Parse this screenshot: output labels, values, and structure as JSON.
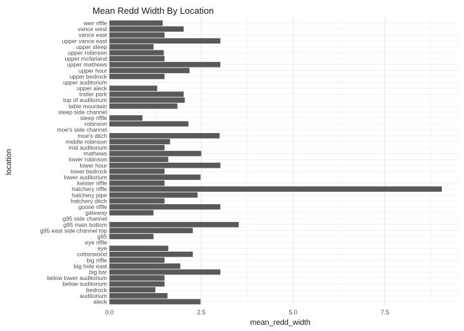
{
  "chart_data": {
    "type": "bar",
    "orientation": "horizontal",
    "title": "Mean Redd Width By Location",
    "xlabel": "mean_redd_width",
    "ylabel": "location",
    "xlim": [
      0,
      9.5
    ],
    "xticks": [
      0.0,
      2.5,
      5.0,
      7.5
    ],
    "xtick_labels": [
      "0.0",
      "2.5",
      "5.0",
      "7.5"
    ],
    "grid": true,
    "bar_color": "#595959",
    "categories": [
      "weir riffle",
      "vance west",
      "vance east",
      "upper vance east",
      "upper steep",
      "upper robinson",
      "upper mcfarland",
      "upper mathews",
      "upper hour",
      "upper bedrock",
      "upper auditorium",
      "upper aleck",
      "trailer park",
      "top of auditorium",
      "table mountain",
      "steep side channel",
      "steep riffle",
      "robinson",
      "moe's side channel",
      "moe's ditch",
      "middle robinson",
      "mid auditorium",
      "mathews",
      "lower robinson",
      "lower hour",
      "lower bedrock",
      "lower auditorium",
      "keister riffle",
      "hatchery riffle",
      "hatchery pipe",
      "hatchery ditch",
      "goose riffle",
      "gateway",
      "g95 side channel",
      "g95 main bottom",
      "g95 east side channel top",
      "g95",
      "eye riffle",
      "eye",
      "cottonwood",
      "big riffle",
      "big hole east",
      "big bar",
      "below lower auditorium",
      "below auditorium",
      "bedrock",
      "auditorium",
      "aleck"
    ],
    "values": [
      1.45,
      2.02,
      1.5,
      3.02,
      1.2,
      1.48,
      1.5,
      3.02,
      2.18,
      1.5,
      null,
      1.3,
      2.02,
      2.05,
      1.85,
      null,
      0.9,
      2.15,
      null,
      3.0,
      1.65,
      1.5,
      2.5,
      1.6,
      3.02,
      1.5,
      2.48,
      1.5,
      9.05,
      2.4,
      1.5,
      3.02,
      1.2,
      null,
      3.52,
      2.27,
      1.2,
      null,
      1.6,
      2.27,
      1.5,
      1.93,
      3.02,
      1.5,
      1.5,
      1.25,
      1.58,
      2.48
    ]
  }
}
